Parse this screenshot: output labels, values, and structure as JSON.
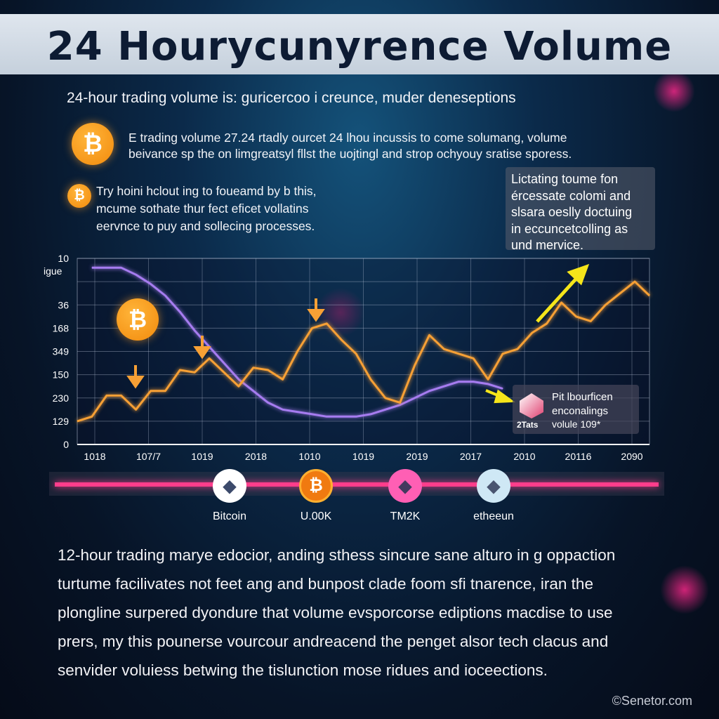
{
  "title": "24 Hourycunyrence Volume",
  "subtitle": "24-hour trading volume is: guricercoo i creunce, muder deneseptions",
  "intro": {
    "icon": "bitcoin-icon",
    "lines": [
      "E trading volume 27.24 rtadly ourcet 24 lhou incussis to come solumang, volume",
      "beivance sp the on limgreatsyl fllst the uojtingl and strop ochyouy sratise sporess."
    ]
  },
  "second": {
    "icon": "bitcoin-icon",
    "lines": [
      "Try hoini hclout ing to foueamd by b this,",
      "mcume sothate thur fect eficet vollatins",
      "eervnce to puy and sollecing processes."
    ]
  },
  "note": {
    "lines": [
      "Lictating toume fon",
      "ércessate colomi and",
      "slsara oeslly doctuing",
      "in eccuncetcolling as",
      "und mervice."
    ]
  },
  "colors": {
    "orange": "#f7a035",
    "purple": "#a67cf0",
    "yellow": "#f5e51a",
    "pink": "#ff3d8b",
    "banner": "#d6dee8"
  },
  "chart_data": {
    "type": "line",
    "title": "",
    "ylabel_tick": "igue",
    "y_tick_labels": [
      "0",
      "129",
      "230",
      "150",
      "349",
      "168",
      "36",
      "",
      "10"
    ],
    "x_tick_labels": [
      "1018",
      "107/7",
      "1019",
      "2018",
      "1010",
      "1019",
      "2019",
      "2017",
      "2010",
      "20116",
      "2090"
    ],
    "ylim": [
      0,
      8
    ],
    "grid": true,
    "series": [
      {
        "color": "#f7a035",
        "values": [
          1.0,
          1.2,
          2.1,
          2.1,
          1.5,
          2.3,
          2.3,
          3.2,
          3.1,
          3.7,
          3.1,
          2.5,
          3.3,
          3.2,
          2.8,
          4.0,
          5.0,
          5.2,
          4.5,
          3.9,
          2.8,
          2.0,
          1.8,
          3.4,
          4.7,
          4.1,
          3.9,
          3.7,
          2.8,
          3.9,
          4.1,
          4.8,
          5.2,
          6.1,
          5.5,
          5.3,
          6.0,
          6.5,
          7.0,
          6.4
        ]
      },
      {
        "color": "#a67cf0",
        "values": [
          null,
          7.6,
          7.6,
          7.6,
          7.3,
          6.9,
          6.4,
          5.7,
          4.9,
          4.2,
          3.5,
          2.8,
          2.3,
          1.8,
          1.5,
          1.4,
          1.3,
          1.2,
          1.2,
          1.2,
          1.3,
          1.5,
          1.7,
          2.0,
          2.3,
          2.5,
          2.7,
          2.7,
          2.6,
          2.4,
          null,
          null,
          null,
          null,
          null,
          null,
          null,
          null,
          null,
          null
        ]
      }
    ],
    "annotations": {
      "info_box": {
        "lines": [
          "Pit lbourficen",
          "enconalings"
        ],
        "badge": "2Tats",
        "value": "volule 109*"
      }
    }
  },
  "timeline": {
    "items": [
      {
        "label": "Bitcoin",
        "icon": "ethereum-icon",
        "bg": "#ffffff",
        "fg": "#3c4a6b"
      },
      {
        "label": "U.00K",
        "icon": "bitcoin-icon",
        "bg": "#f07a10",
        "fg": "#ffffff"
      },
      {
        "label": "TM2K",
        "icon": "ethereum-icon",
        "bg": "#ff5fb4",
        "fg": "#44395e"
      },
      {
        "label": "etheeun",
        "icon": "ethereum-icon",
        "bg": "#cfe8f5",
        "fg": "#4a5570"
      }
    ]
  },
  "paragraph": [
    "12-hour trading marye edocior, anding sthess sincure sane alturo in g oppaction",
    "turtume facilivates not feet ang and bunpost clade foom sfi tnarence, iran the",
    "plongline surpered dyondure that volume evsporcorse ediptions macdise to use",
    "prers, my this pounerse vourcour andreacend the penget alsor tech clacus and",
    "senvider voluiess betwing the tislunction mose ridues and ioceections."
  ],
  "footer": "©Senetor.com"
}
